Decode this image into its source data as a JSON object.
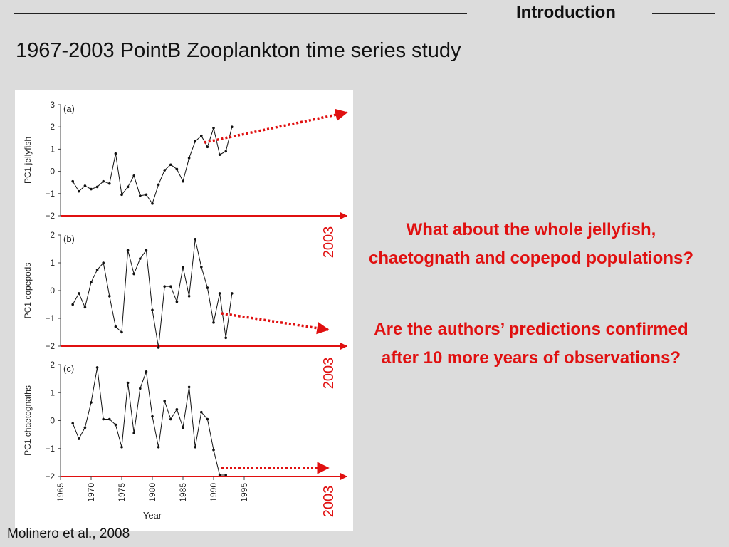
{
  "header": {
    "section": "Introduction",
    "title": "1967-2003 PointB Zooplankton time series study"
  },
  "questions": [
    "What about the whole jellyfish, chaetognath and copepod populations?",
    "Are the authors’ predictions confirmed after 10 more years of observations?"
  ],
  "citation": "Molinero et al., 2008",
  "colors": {
    "annotation": "#e01010",
    "series": "#111111",
    "background": "#dcdcdc"
  },
  "chart_data": [
    {
      "type": "line",
      "panel_label": "(a)",
      "ylabel": "PC1 jellyfish",
      "ylim": [
        -2,
        3
      ],
      "yticks": [
        "3",
        "2",
        "1",
        "0",
        "−1",
        "−2"
      ],
      "xlim": [
        1965,
        1995
      ],
      "x": [
        1967,
        1968,
        1969,
        1970,
        1971,
        1972,
        1973,
        1974,
        1975,
        1976,
        1977,
        1978,
        1979,
        1980,
        1981,
        1982,
        1983,
        1984,
        1985,
        1986,
        1987,
        1988,
        1989,
        1990,
        1991,
        1992,
        1993
      ],
      "values": [
        -0.45,
        -0.9,
        -0.65,
        -0.8,
        -0.7,
        -0.45,
        -0.55,
        0.8,
        -1.05,
        -0.7,
        -0.2,
        -1.1,
        -1.05,
        -1.45,
        -0.6,
        0.05,
        0.3,
        0.1,
        -0.45,
        0.6,
        1.35,
        1.6,
        1.1,
        1.95,
        0.75,
        0.9,
        2.0
      ],
      "annotation": {
        "label": "2003",
        "direction": "up"
      }
    },
    {
      "type": "line",
      "panel_label": "(b)",
      "ylabel": "PC1 copepods",
      "ylim": [
        -2,
        2
      ],
      "yticks": [
        "2",
        "1",
        "0",
        "−1",
        "−2"
      ],
      "xlim": [
        1965,
        1995
      ],
      "x": [
        1967,
        1968,
        1969,
        1970,
        1971,
        1972,
        1973,
        1974,
        1975,
        1976,
        1977,
        1978,
        1979,
        1980,
        1981,
        1982,
        1983,
        1984,
        1985,
        1986,
        1987,
        1988,
        1989,
        1990,
        1991,
        1992,
        1993
      ],
      "values": [
        -0.5,
        -0.1,
        -0.6,
        0.3,
        0.75,
        1.0,
        -0.2,
        -1.3,
        -1.5,
        1.45,
        0.6,
        1.15,
        1.45,
        -0.7,
        -2.05,
        0.15,
        0.15,
        -0.4,
        0.85,
        -0.2,
        1.85,
        0.85,
        0.1,
        -1.15,
        -0.1,
        -1.7,
        -0.1
      ],
      "annotation": {
        "label": "2003",
        "direction": "down"
      }
    },
    {
      "type": "line",
      "panel_label": "(c)",
      "ylabel": "PC1 chaetognaths",
      "ylim": [
        -2,
        2
      ],
      "yticks": [
        "2",
        "1",
        "0",
        "−1",
        "−2"
      ],
      "xlim": [
        1965,
        1995
      ],
      "xticks": [
        "1965",
        "1970",
        "1975",
        "1980",
        "1985",
        "1990",
        "1995"
      ],
      "xlabel": "Year",
      "x": [
        1967,
        1968,
        1969,
        1970,
        1971,
        1972,
        1973,
        1974,
        1975,
        1976,
        1977,
        1978,
        1979,
        1980,
        1981,
        1982,
        1983,
        1984,
        1985,
        1986,
        1987,
        1988,
        1989,
        1990,
        1991,
        1992
      ],
      "values": [
        -0.1,
        -0.65,
        -0.25,
        0.65,
        1.9,
        0.05,
        0.05,
        -0.15,
        -0.95,
        1.35,
        -0.45,
        1.15,
        1.75,
        0.15,
        -0.95,
        0.7,
        0.05,
        0.4,
        -0.25,
        1.2,
        -0.95,
        0.3,
        0.05,
        -1.05,
        -1.95,
        -1.95
      ],
      "annotation": {
        "label": "2003",
        "direction": "flat"
      }
    }
  ]
}
